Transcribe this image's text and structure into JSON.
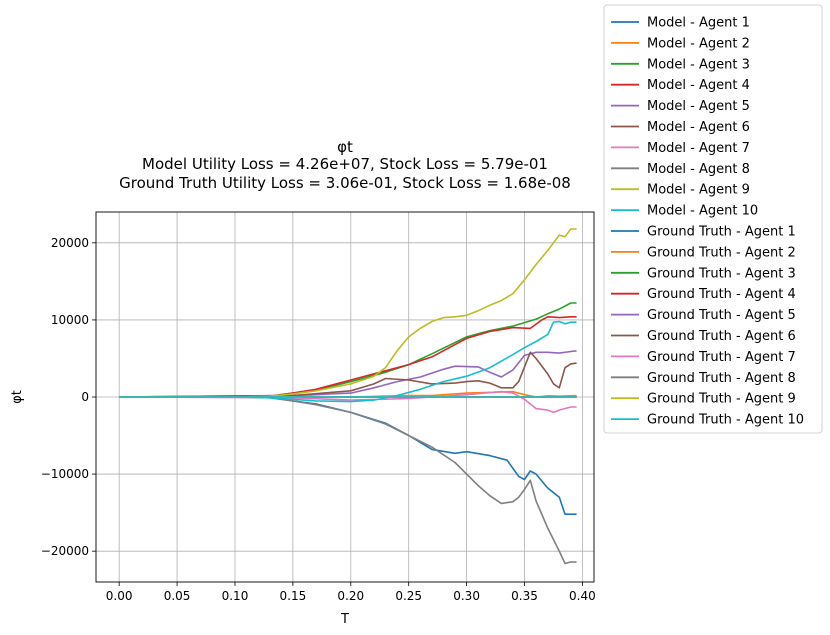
{
  "chart_data": {
    "type": "line",
    "title": "φt",
    "subtitle_lines": [
      "Model Utility Loss = 4.26e+07, Stock Loss = 5.79e-01",
      "Ground Truth Utility Loss = 3.06e-01, Stock Loss = 1.68e-08"
    ],
    "xlabel": "T",
    "ylabel": "φt",
    "xlim": [
      -0.02,
      0.41
    ],
    "ylim": [
      -24000,
      24000
    ],
    "xticks": [
      0.0,
      0.05,
      0.1,
      0.15,
      0.2,
      0.25,
      0.3,
      0.35,
      0.4
    ],
    "xtick_labels": [
      "0.00",
      "0.05",
      "0.10",
      "0.15",
      "0.20",
      "0.25",
      "0.30",
      "0.35",
      "0.40"
    ],
    "yticks": [
      -20000,
      -10000,
      0,
      10000,
      20000
    ],
    "ytick_labels": [
      "−20000",
      "−10000",
      "0",
      "10000",
      "20000"
    ],
    "grid": true,
    "legend_position": "outside-right",
    "colors": [
      "#1f77b4",
      "#ff7f0e",
      "#2ca02c",
      "#d62728",
      "#9467bd",
      "#8c564b",
      "#e377c2",
      "#7f7f7f",
      "#bcbd22",
      "#17becf"
    ],
    "series": [
      {
        "name": "Model - Agent 1",
        "x": [
          0,
          0.1,
          0.13,
          0.15,
          0.17,
          0.2,
          0.23,
          0.25,
          0.27,
          0.29,
          0.3,
          0.32,
          0.335,
          0.345,
          0.35,
          0.355,
          0.36,
          0.37,
          0.38,
          0.385,
          0.39,
          0.395
        ],
        "y": [
          0,
          0,
          0,
          -500,
          -900,
          -2000,
          -3400,
          -5000,
          -6800,
          -7300,
          -7100,
          -7600,
          -8200,
          -10300,
          -10700,
          -9600,
          -10000,
          -11800,
          -13000,
          -15200,
          -15200,
          -15200
        ]
      },
      {
        "name": "Model - Agent 2",
        "x": [
          0,
          0.13,
          0.15,
          0.2,
          0.25,
          0.27,
          0.3,
          0.32,
          0.34,
          0.35,
          0.36,
          0.37,
          0.38,
          0.395
        ],
        "y": [
          0,
          0,
          100,
          0,
          200,
          200,
          500,
          600,
          700,
          300,
          0,
          150,
          100,
          200
        ]
      },
      {
        "name": "Model - Agent 3",
        "x": [
          0,
          0.1,
          0.13,
          0.15,
          0.17,
          0.2,
          0.23,
          0.25,
          0.27,
          0.3,
          0.32,
          0.34,
          0.36,
          0.37,
          0.38,
          0.39,
          0.395
        ],
        "y": [
          0,
          0,
          100,
          500,
          900,
          2000,
          3200,
          4200,
          5600,
          7800,
          8600,
          9200,
          10100,
          10800,
          11400,
          12200,
          12200
        ]
      },
      {
        "name": "Model - Agent 4",
        "x": [
          0,
          0.1,
          0.13,
          0.15,
          0.17,
          0.2,
          0.23,
          0.25,
          0.27,
          0.3,
          0.32,
          0.34,
          0.355,
          0.365,
          0.37,
          0.38,
          0.39,
          0.395
        ],
        "y": [
          0,
          0,
          100,
          500,
          1000,
          2200,
          3400,
          4200,
          5200,
          7600,
          8500,
          9000,
          8900,
          10000,
          10400,
          10300,
          10400,
          10400
        ]
      },
      {
        "name": "Model - Agent 5",
        "x": [
          0,
          0.15,
          0.2,
          0.22,
          0.24,
          0.26,
          0.28,
          0.29,
          0.31,
          0.32,
          0.33,
          0.34,
          0.35,
          0.36,
          0.37,
          0.38,
          0.39,
          0.395
        ],
        "y": [
          0,
          200,
          500,
          1200,
          2000,
          2600,
          3600,
          4000,
          3900,
          3200,
          2600,
          3500,
          5400,
          5800,
          5800,
          5700,
          5900,
          6000
        ]
      },
      {
        "name": "Model - Agent 6",
        "x": [
          0,
          0.15,
          0.2,
          0.22,
          0.23,
          0.25,
          0.27,
          0.29,
          0.3,
          0.31,
          0.32,
          0.33,
          0.34,
          0.345,
          0.355,
          0.36,
          0.37,
          0.375,
          0.38,
          0.385,
          0.39,
          0.395
        ],
        "y": [
          0,
          200,
          800,
          1700,
          2400,
          2200,
          1700,
          1800,
          2000,
          2100,
          1800,
          1200,
          1200,
          2000,
          5800,
          5000,
          3000,
          1700,
          1200,
          3800,
          4300,
          4400
        ]
      },
      {
        "name": "Model - Agent 7",
        "x": [
          0,
          0.15,
          0.2,
          0.25,
          0.3,
          0.33,
          0.34,
          0.35,
          0.36,
          0.37,
          0.375,
          0.38,
          0.39,
          0.395
        ],
        "y": [
          0,
          -100,
          -400,
          -200,
          300,
          700,
          500,
          -300,
          -1500,
          -1700,
          -2000,
          -1700,
          -1300,
          -1300
        ]
      },
      {
        "name": "Model - Agent 8",
        "x": [
          0,
          0.1,
          0.13,
          0.15,
          0.17,
          0.2,
          0.23,
          0.25,
          0.27,
          0.29,
          0.3,
          0.31,
          0.32,
          0.33,
          0.34,
          0.345,
          0.35,
          0.355,
          0.36,
          0.37,
          0.38,
          0.385,
          0.39,
          0.395
        ],
        "y": [
          0,
          0,
          -100,
          -500,
          -1000,
          -2000,
          -3500,
          -5000,
          -6500,
          -8500,
          -10000,
          -11500,
          -12800,
          -13800,
          -13600,
          -13000,
          -12000,
          -10800,
          -13500,
          -17000,
          -20000,
          -21600,
          -21400,
          -21400
        ]
      },
      {
        "name": "Model - Agent 9",
        "x": [
          0,
          0.1,
          0.13,
          0.15,
          0.17,
          0.2,
          0.22,
          0.23,
          0.24,
          0.25,
          0.26,
          0.27,
          0.28,
          0.29,
          0.3,
          0.31,
          0.32,
          0.33,
          0.34,
          0.35,
          0.355,
          0.36,
          0.37,
          0.375,
          0.38,
          0.385,
          0.39,
          0.395
        ],
        "y": [
          0,
          0,
          100,
          400,
          800,
          1700,
          2700,
          3800,
          6000,
          7800,
          8900,
          9800,
          10300,
          10400,
          10600,
          11200,
          11900,
          12500,
          13400,
          15200,
          16200,
          17200,
          19000,
          20000,
          21000,
          20800,
          21800,
          21800
        ]
      },
      {
        "name": "Model - Agent 10",
        "x": [
          0,
          0.1,
          0.13,
          0.15,
          0.17,
          0.2,
          0.22,
          0.24,
          0.26,
          0.28,
          0.3,
          0.32,
          0.34,
          0.35,
          0.36,
          0.37,
          0.375,
          0.38,
          0.385,
          0.39,
          0.395
        ],
        "y": [
          0,
          0,
          -100,
          -300,
          -500,
          -600,
          -400,
          200,
          1000,
          2000,
          2700,
          3800,
          5500,
          6400,
          7200,
          8100,
          9700,
          9800,
          9500,
          9700,
          9700
        ]
      },
      {
        "name": "Ground Truth - Agent 1",
        "x": [
          0,
          0.395
        ],
        "y": [
          0,
          0
        ]
      },
      {
        "name": "Ground Truth - Agent 2",
        "x": [
          0,
          0.395
        ],
        "y": [
          0,
          0
        ]
      },
      {
        "name": "Ground Truth - Agent 3",
        "x": [
          0,
          0.395
        ],
        "y": [
          0,
          0
        ]
      },
      {
        "name": "Ground Truth - Agent 4",
        "x": [
          0,
          0.395
        ],
        "y": [
          0,
          0
        ]
      },
      {
        "name": "Ground Truth - Agent 5",
        "x": [
          0,
          0.395
        ],
        "y": [
          0,
          0
        ]
      },
      {
        "name": "Ground Truth - Agent 6",
        "x": [
          0,
          0.395
        ],
        "y": [
          0,
          0
        ]
      },
      {
        "name": "Ground Truth - Agent 7",
        "x": [
          0,
          0.395
        ],
        "y": [
          0,
          0
        ]
      },
      {
        "name": "Ground Truth - Agent 8",
        "x": [
          0,
          0.395
        ],
        "y": [
          0,
          0
        ]
      },
      {
        "name": "Ground Truth - Agent 9",
        "x": [
          0,
          0.395
        ],
        "y": [
          0,
          0
        ]
      },
      {
        "name": "Ground Truth - Agent 10",
        "x": [
          0,
          0.395
        ],
        "y": [
          0,
          0
        ]
      }
    ]
  }
}
